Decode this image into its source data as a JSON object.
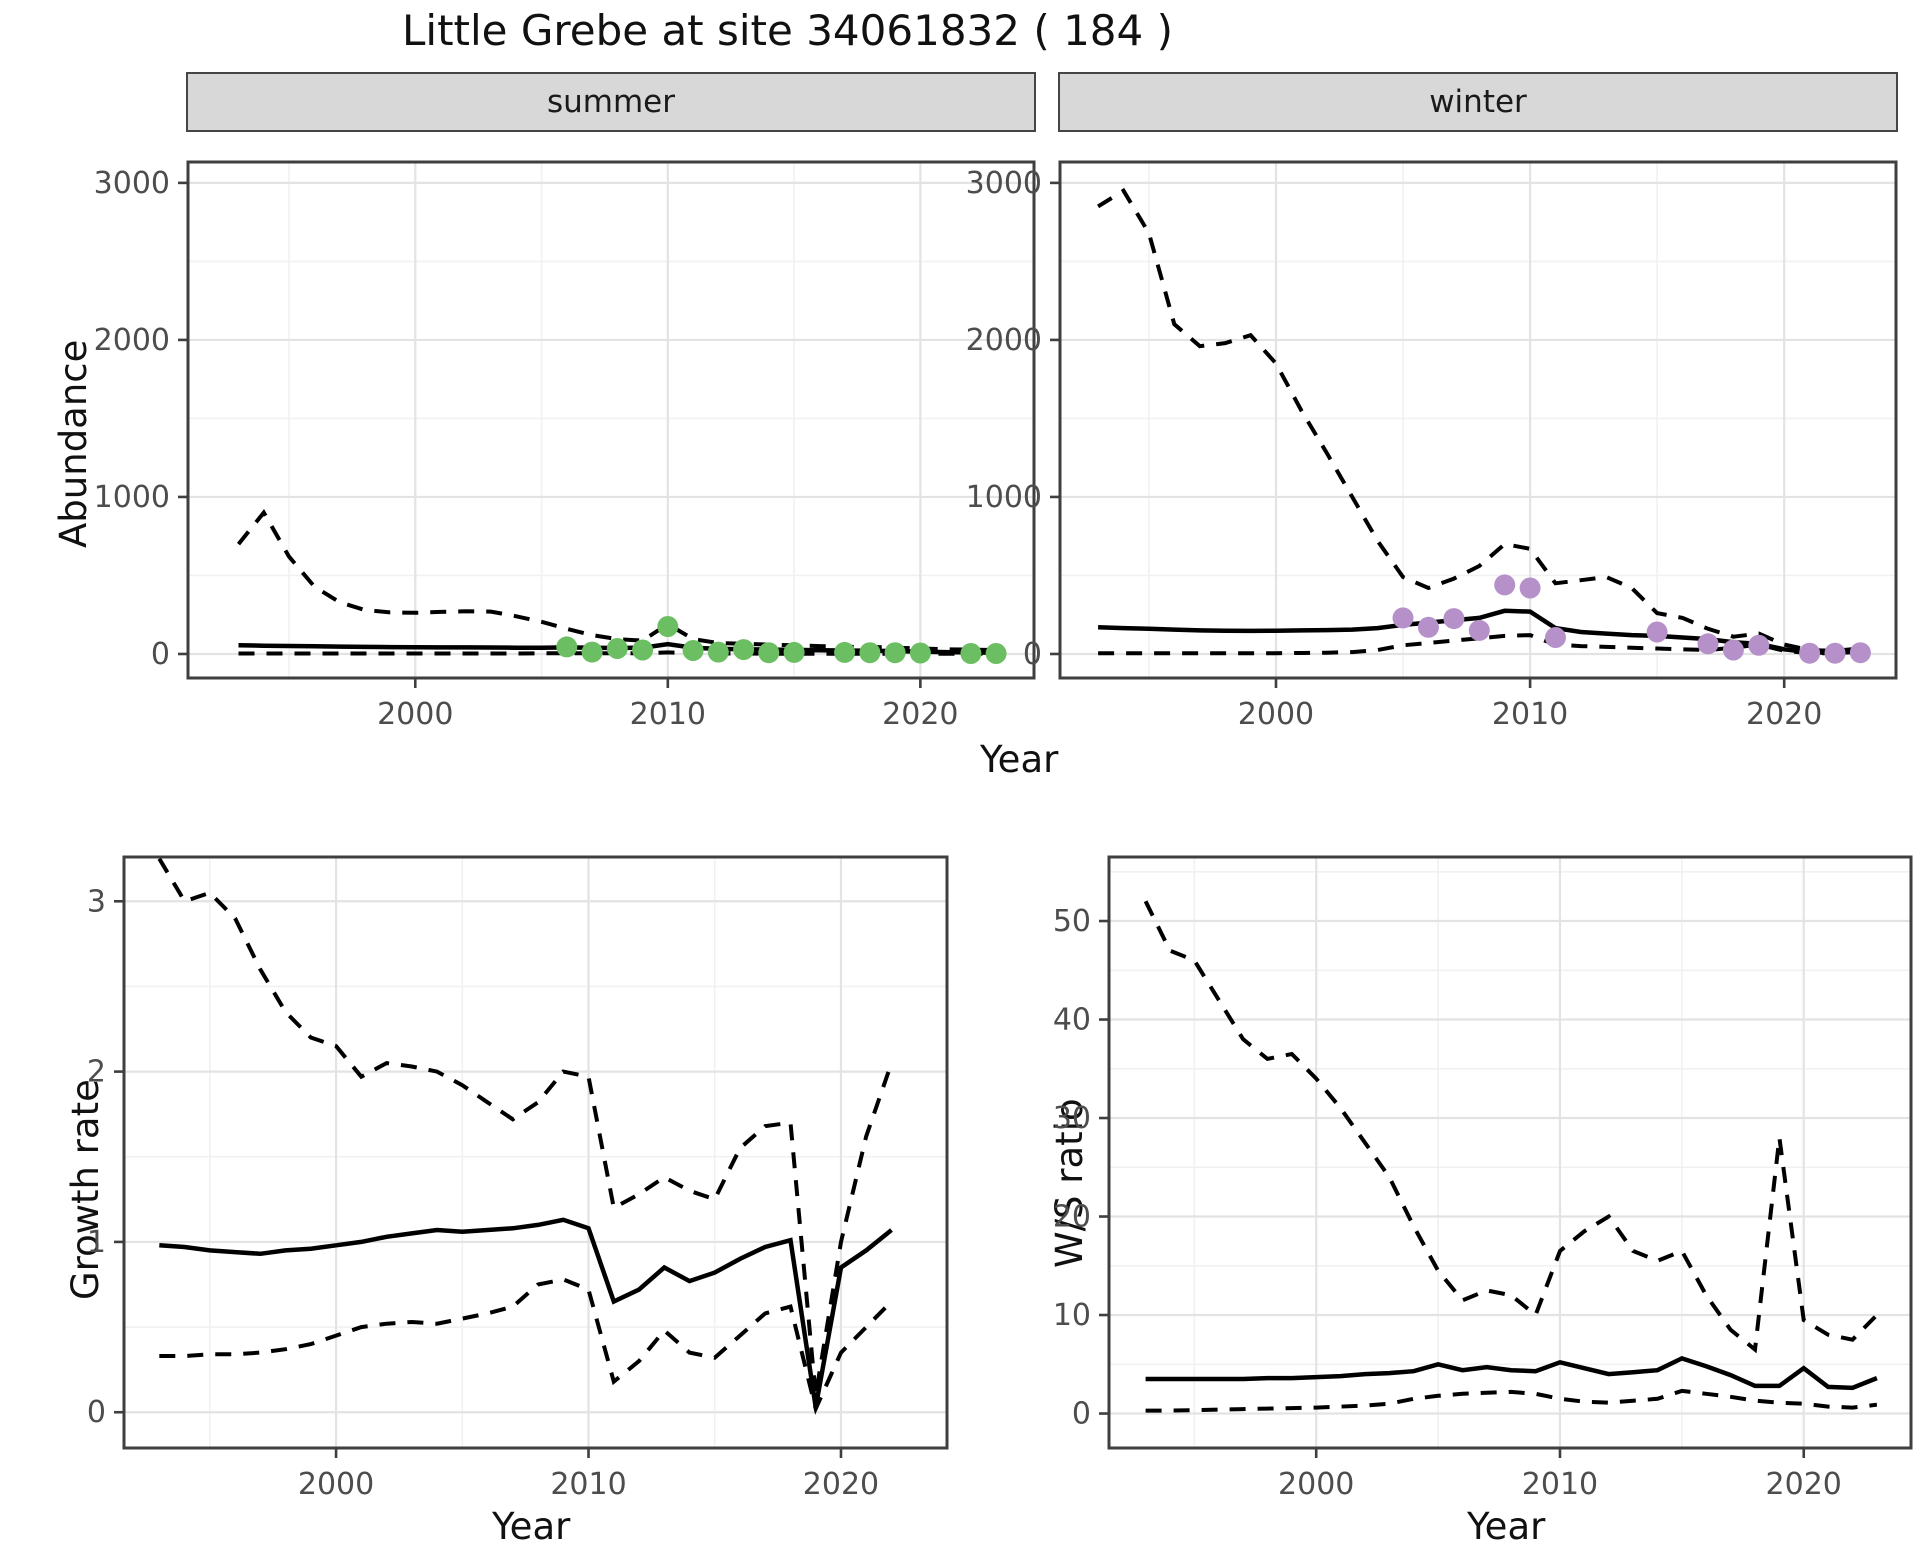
{
  "title": "Little Grebe at site 34061832 ( 184 )",
  "axis_labels": {
    "abundance": "Abundance",
    "year_top": "Year",
    "growth_rate": "Growth rate",
    "year_growth": "Year",
    "ws_ratio": "W/S ratio",
    "year_ws": "Year"
  },
  "colors": {
    "accent_summer_points": "#6cbe63",
    "accent_winter_points": "#b691c9",
    "line": "#000000",
    "panel_border": "#3f3f3f",
    "strip_bg": "#d8d8d8",
    "grid_major": "#e3e3e3",
    "grid_minor": "#f1f1f1",
    "tick_text": "#4d4d4d",
    "background": "#ffffff"
  },
  "chart_data": [
    {
      "id": "abundance-summer",
      "type": "line",
      "facet_label": "summer",
      "ylabel": "Abundance",
      "xlabel": "Year",
      "x_ticks": [
        2000,
        2010,
        2020
      ],
      "y_ticks": [
        0,
        1000,
        2000,
        3000
      ],
      "x_domain": [
        1991,
        2024.5
      ],
      "y_domain": [
        -153,
        3133
      ],
      "grid": true,
      "legend": "none",
      "years": [
        1993,
        1994,
        1995,
        1996,
        1997,
        1998,
        1999,
        2000,
        2001,
        2002,
        2003,
        2004,
        2005,
        2006,
        2007,
        2008,
        2009,
        2010,
        2011,
        2012,
        2013,
        2014,
        2015,
        2016,
        2017,
        2018,
        2019,
        2020,
        2021,
        2022,
        2023
      ],
      "series": [
        {
          "name": "upper_95ci",
          "style": "dashed",
          "values": [
            700,
            900,
            620,
            430,
            330,
            280,
            265,
            262,
            268,
            272,
            270,
            240,
            205,
            160,
            120,
            95,
            85,
            190,
            95,
            70,
            65,
            60,
            55,
            50,
            45,
            45,
            40,
            35,
            30,
            28,
            25
          ]
        },
        {
          "name": "estimate",
          "style": "solid",
          "values": [
            55,
            53,
            51,
            49,
            47,
            45,
            44,
            43,
            42,
            42,
            41,
            40,
            40,
            42,
            40,
            38,
            40,
            62,
            40,
            32,
            30,
            28,
            26,
            24,
            22,
            20,
            18,
            15,
            12,
            10,
            8
          ]
        },
        {
          "name": "lower_95ci",
          "style": "dashed",
          "values": [
            3,
            3,
            3,
            3,
            3,
            3,
            3,
            3,
            3,
            3,
            3,
            3,
            4,
            4,
            4,
            4,
            4,
            10,
            4,
            3,
            3,
            2,
            2,
            2,
            2,
            2,
            2,
            1,
            1,
            1,
            1
          ]
        }
      ],
      "points": {
        "name": "observed-summer-counts",
        "color_key": "accent_summer_points",
        "years": [
          2006,
          2007,
          2008,
          2009,
          2010,
          2011,
          2012,
          2013,
          2014,
          2015,
          2017,
          2018,
          2019,
          2020,
          2022,
          2023
        ],
        "values": [
          45,
          12,
          35,
          25,
          175,
          22,
          12,
          28,
          8,
          10,
          10,
          8,
          8,
          6,
          3,
          3
        ]
      }
    },
    {
      "id": "abundance-winter",
      "type": "line",
      "facet_label": "winter",
      "ylabel": "Abundance",
      "xlabel": "Year",
      "x_ticks": [
        2000,
        2010,
        2020
      ],
      "y_ticks": [
        0,
        1000,
        2000,
        3000
      ],
      "x_domain": [
        1991.5,
        2024.4
      ],
      "y_domain": [
        -153,
        3133
      ],
      "grid": true,
      "legend": "none",
      "years": [
        1993,
        1994,
        1995,
        1996,
        1997,
        1998,
        1999,
        2000,
        2001,
        2002,
        2003,
        2004,
        2005,
        2006,
        2007,
        2008,
        2009,
        2010,
        2011,
        2012,
        2013,
        2014,
        2015,
        2016,
        2017,
        2018,
        2019,
        2020,
        2021,
        2022,
        2023
      ],
      "series": [
        {
          "name": "upper_95ci",
          "style": "dashed",
          "values": [
            2850,
            2950,
            2680,
            2100,
            1960,
            1980,
            2030,
            1850,
            1550,
            1280,
            1000,
            720,
            490,
            420,
            480,
            560,
            700,
            670,
            450,
            470,
            490,
            420,
            260,
            230,
            160,
            110,
            130,
            60,
            25,
            20,
            35
          ]
        },
        {
          "name": "estimate",
          "style": "solid",
          "values": [
            170,
            165,
            160,
            155,
            150,
            148,
            147,
            148,
            150,
            152,
            155,
            165,
            185,
            200,
            215,
            230,
            275,
            270,
            165,
            140,
            130,
            120,
            115,
            105,
            95,
            75,
            65,
            30,
            10,
            8,
            15
          ]
        },
        {
          "name": "lower_95ci",
          "style": "dashed",
          "values": [
            4,
            4,
            4,
            4,
            4,
            4,
            4,
            5,
            6,
            8,
            12,
            25,
            55,
            70,
            85,
            100,
            115,
            120,
            60,
            50,
            45,
            40,
            35,
            30,
            25,
            40,
            60,
            20,
            5,
            5,
            8
          ]
        }
      ],
      "points": {
        "name": "observed-winter-counts",
        "color_key": "accent_winter_points",
        "years": [
          2005,
          2006,
          2007,
          2008,
          2009,
          2010,
          2011,
          2015,
          2017,
          2018,
          2019,
          2021,
          2022,
          2023
        ],
        "values": [
          230,
          170,
          225,
          150,
          440,
          420,
          105,
          140,
          65,
          25,
          55,
          5,
          5,
          8
        ]
      }
    },
    {
      "id": "growth-rate",
      "type": "line",
      "facet_label": "",
      "ylabel": "Growth rate",
      "xlabel": "Year",
      "x_ticks": [
        2000,
        2010,
        2020
      ],
      "y_ticks": [
        0,
        1,
        2,
        3
      ],
      "x_domain": [
        1991.6,
        2024.2
      ],
      "y_domain": [
        -0.21,
        3.26
      ],
      "grid": true,
      "legend": "none",
      "years": [
        1993,
        1994,
        1995,
        1996,
        1997,
        1998,
        1999,
        2000,
        2001,
        2002,
        2003,
        2004,
        2005,
        2006,
        2007,
        2008,
        2009,
        2010,
        2011,
        2012,
        2013,
        2014,
        2015,
        2016,
        2017,
        2018,
        2019,
        2020,
        2021,
        2022
      ],
      "series": [
        {
          "name": "upper_95ci",
          "style": "dashed",
          "values": [
            3.25,
            3.0,
            3.05,
            2.9,
            2.6,
            2.35,
            2.2,
            2.15,
            1.97,
            2.05,
            2.03,
            2.0,
            1.92,
            1.82,
            1.72,
            1.82,
            2.0,
            1.97,
            1.2,
            1.28,
            1.38,
            1.3,
            1.25,
            1.55,
            1.68,
            1.7,
            0.1,
            1.0,
            1.62,
            2.05
          ]
        },
        {
          "name": "estimate",
          "style": "solid",
          "values": [
            0.98,
            0.97,
            0.95,
            0.94,
            0.93,
            0.95,
            0.96,
            0.98,
            1.0,
            1.03,
            1.05,
            1.07,
            1.06,
            1.07,
            1.08,
            1.1,
            1.13,
            1.08,
            0.65,
            0.72,
            0.85,
            0.77,
            0.82,
            0.9,
            0.97,
            1.01,
            0.03,
            0.85,
            0.95,
            1.07
          ]
        },
        {
          "name": "lower_95ci",
          "style": "dashed",
          "values": [
            0.33,
            0.33,
            0.34,
            0.34,
            0.35,
            0.37,
            0.4,
            0.45,
            0.5,
            0.52,
            0.53,
            0.52,
            0.55,
            0.58,
            0.62,
            0.75,
            0.78,
            0.72,
            0.18,
            0.3,
            0.48,
            0.35,
            0.32,
            0.45,
            0.58,
            0.62,
            0.02,
            0.35,
            0.5,
            0.65
          ]
        }
      ],
      "points": null
    },
    {
      "id": "ws-ratio",
      "type": "line",
      "facet_label": "",
      "ylabel": "W/S ratio",
      "xlabel": "Year",
      "x_ticks": [
        2000,
        2010,
        2020
      ],
      "y_ticks": [
        0,
        10,
        20,
        30,
        40,
        50
      ],
      "x_domain": [
        1991.5,
        2024.4
      ],
      "y_domain": [
        -3.5,
        56.5
      ],
      "grid": true,
      "legend": "none",
      "years": [
        1993,
        1994,
        1995,
        1996,
        1997,
        1998,
        1999,
        2000,
        2001,
        2002,
        2003,
        2004,
        2005,
        2006,
        2007,
        2008,
        2009,
        2010,
        2011,
        2012,
        2013,
        2014,
        2015,
        2016,
        2017,
        2018,
        2019,
        2020,
        2021,
        2022,
        2023
      ],
      "series": [
        {
          "name": "upper_95ci",
          "style": "dashed",
          "values": [
            52,
            47,
            46,
            42,
            38,
            36,
            36.5,
            34,
            31,
            27.5,
            24,
            19,
            14.5,
            11.5,
            12.5,
            12,
            10,
            16.5,
            18.5,
            20,
            16.5,
            15.5,
            16.5,
            12,
            8.5,
            6.5,
            28,
            9.5,
            8,
            7.5,
            10
          ]
        },
        {
          "name": "estimate",
          "style": "solid",
          "values": [
            3.5,
            3.5,
            3.5,
            3.5,
            3.5,
            3.6,
            3.6,
            3.7,
            3.8,
            4.0,
            4.1,
            4.3,
            5.0,
            4.4,
            4.7,
            4.4,
            4.3,
            5.2,
            4.6,
            4.0,
            4.2,
            4.4,
            5.6,
            4.8,
            3.9,
            2.8,
            2.8,
            4.6,
            2.7,
            2.6,
            3.6
          ]
        },
        {
          "name": "lower_95ci",
          "style": "dashed",
          "values": [
            0.3,
            0.3,
            0.35,
            0.4,
            0.45,
            0.5,
            0.55,
            0.6,
            0.7,
            0.8,
            1.0,
            1.5,
            1.8,
            2.0,
            2.1,
            2.2,
            2.0,
            1.5,
            1.2,
            1.1,
            1.3,
            1.5,
            2.3,
            2.0,
            1.7,
            1.3,
            1.1,
            1.0,
            0.7,
            0.6,
            0.9
          ]
        }
      ],
      "points": null
    }
  ]
}
